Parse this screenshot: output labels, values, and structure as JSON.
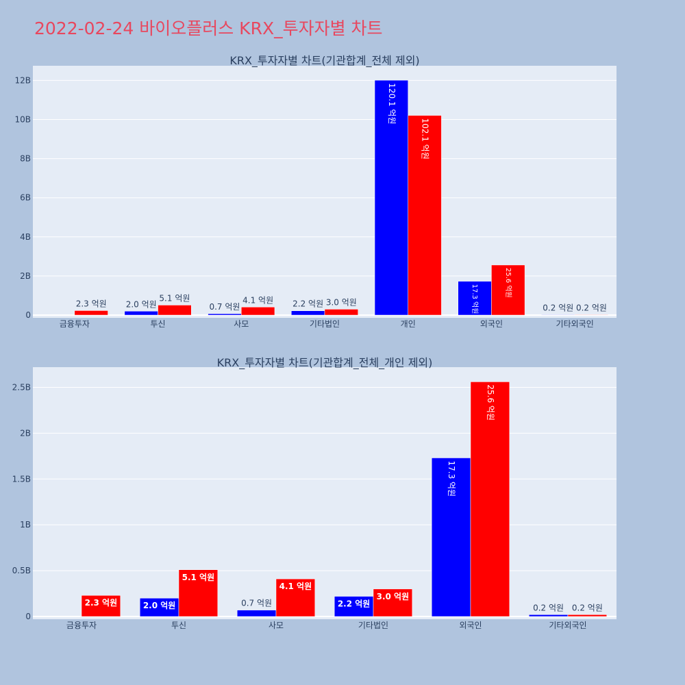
{
  "page": {
    "title": "2022-02-24 바이오플러스 KRX_투자자별 차트"
  },
  "colors": {
    "buy": "#0000ff",
    "sell": "#ff0000",
    "plot_bg": "#e5ecf6",
    "page_bg": "#b0c4de",
    "title": "#e8475e"
  },
  "chart_data": [
    {
      "type": "bar",
      "title": "KRX_투자자별 차트(기관합계_전체 제외)",
      "categories": [
        "금융투자",
        "투신",
        "사모",
        "기타법인",
        "개인",
        "외국인",
        "기타외국인"
      ],
      "series": [
        {
          "color": "#0000ff",
          "values": [
            0,
            200000000,
            70000000,
            220000000,
            12010000000,
            1730000000,
            20000000
          ],
          "labels": [
            "",
            "2.0 억원",
            "0.7 억원",
            "2.2 억원",
            "120.1 억원",
            "17.3 억원",
            "0.2 억원"
          ]
        },
        {
          "color": "#ff0000",
          "values": [
            230000000,
            510000000,
            410000000,
            300000000,
            10210000000,
            2560000000,
            20000000
          ],
          "labels": [
            "2.3 억원",
            "5.1 억원",
            "4.1 억원",
            "3.0 억원",
            "102.1 억원",
            "25.6 억원",
            "0.2 억원"
          ]
        }
      ],
      "ylim": [
        0,
        12750000000
      ],
      "yticks": [
        0,
        2000000000,
        4000000000,
        6000000000,
        8000000000,
        10000000000,
        12000000000
      ],
      "yticklabels": [
        "0",
        "2B",
        "4B",
        "6B",
        "8B",
        "10B",
        "12B"
      ],
      "grid": true,
      "legend": false
    },
    {
      "type": "bar",
      "title": "KRX_투자자별 차트(기관합계_전체_개인 제외)",
      "categories": [
        "금융투자",
        "투신",
        "사모",
        "기타법인",
        "외국인",
        "기타외국인"
      ],
      "series": [
        {
          "color": "#0000ff",
          "values": [
            0,
            200000000,
            70000000,
            220000000,
            1730000000,
            20000000
          ],
          "labels": [
            "",
            "2.0 억원",
            "0.7 억원",
            "2.2 억원",
            "17.3 억원",
            "0.2 억원"
          ]
        },
        {
          "color": "#ff0000",
          "values": [
            230000000,
            510000000,
            410000000,
            300000000,
            2560000000,
            20000000
          ],
          "labels": [
            "2.3 억원",
            "5.1 억원",
            "4.1 억원",
            "3.0 억원",
            "25.6 억원",
            "0.2 억원"
          ]
        }
      ],
      "ylim": [
        0,
        2720000000
      ],
      "yticks": [
        0,
        500000000,
        1000000000,
        1500000000,
        2000000000,
        2500000000
      ],
      "yticklabels": [
        "0",
        "0.5B",
        "1B",
        "1.5B",
        "2B",
        "2.5B"
      ],
      "grid": true,
      "legend": false
    }
  ]
}
